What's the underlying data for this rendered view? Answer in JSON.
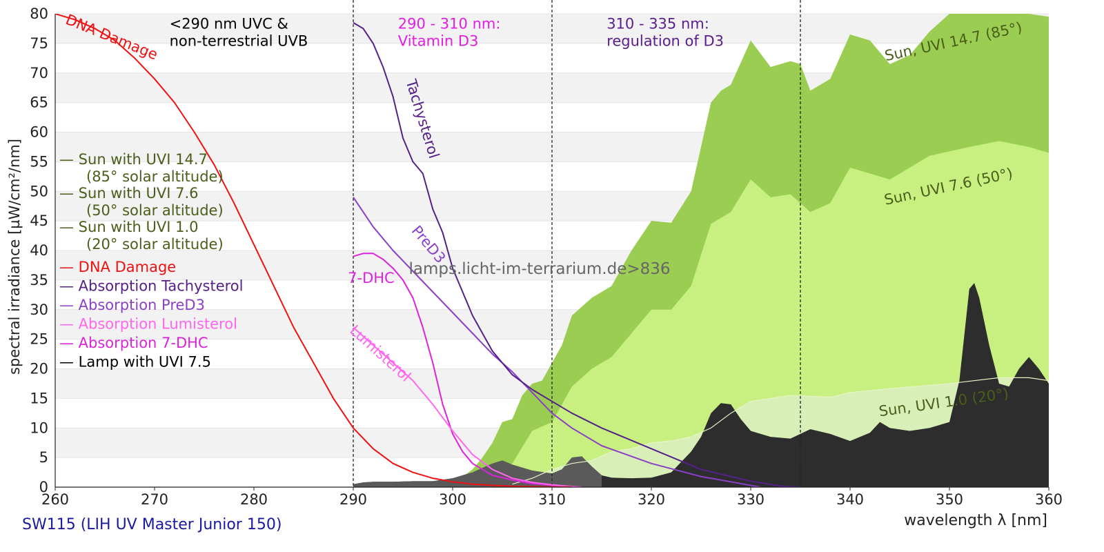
{
  "chart_data": {
    "type": "area",
    "title": "SW115 (LIH UV Master Junior 150)",
    "watermark": "lamps.licht-im-terrarium.de>836",
    "xlabel": "wavelength λ [nm]",
    "ylabel": "spectral irradiance [µW/cm²/nm]",
    "xlim": [
      260,
      360
    ],
    "ylim": [
      0,
      80
    ],
    "xticks": [
      260,
      270,
      280,
      290,
      300,
      310,
      320,
      330,
      340,
      350,
      360
    ],
    "yticks": [
      0,
      5,
      10,
      15,
      20,
      25,
      30,
      35,
      40,
      45,
      50,
      55,
      60,
      65,
      70,
      75,
      80
    ],
    "region_lines": [
      290,
      310,
      335
    ],
    "region_labels": [
      {
        "x": 271.5,
        "y": 77.5,
        "lines": [
          "<290 nm UVC &",
          "non-terrestrial UVB"
        ],
        "color": "#000000"
      },
      {
        "x": 294.5,
        "y": 77.5,
        "lines": [
          "290 - 310 nm:",
          "Vitamin D3"
        ],
        "color": "#e020e0"
      },
      {
        "x": 315.5,
        "y": 77.5,
        "lines": [
          "310 - 335 nm:",
          "regulation of D3"
        ],
        "color": "#5a1e8c"
      }
    ],
    "legend_position": "left",
    "legend": [
      {
        "label": "— Sun with UVI 14.7",
        "sub": "(85° solar altitude)",
        "color": "#4a5e1a"
      },
      {
        "label": "— Sun with UVI 7.6",
        "sub": "(50° solar altitude)",
        "color": "#4a5e1a"
      },
      {
        "label": "— Sun with UVI 1.0",
        "sub": "(20° solar altitude)",
        "color": "#4a5e1a"
      },
      {
        "label": "— DNA Damage",
        "color": "#ee1111"
      },
      {
        "label": "— Absorption Tachysterol",
        "color": "#55208a"
      },
      {
        "label": "— Absorption PreD3",
        "color": "#8a3fc8"
      },
      {
        "label": "— Absorption Lumisterol",
        "color": "#ff66ee"
      },
      {
        "label": "— Absorption 7-DHC",
        "color": "#dd22dd"
      },
      {
        "label": "— Lamp with UVI 7.5",
        "color": "#000000"
      }
    ],
    "series": [
      {
        "name": "Sun with UVI 14.7",
        "kind": "area",
        "color": "#9acd52",
        "x": [
          300,
          302,
          303,
          304,
          305,
          306,
          307,
          308,
          309,
          310,
          311,
          312,
          313,
          314,
          315,
          316,
          318,
          320,
          322,
          324,
          326,
          327,
          328,
          330,
          332,
          334,
          335,
          336,
          338,
          340,
          342,
          344,
          346,
          348,
          350,
          352,
          354,
          356,
          358,
          360
        ],
        "y": [
          0.5,
          3,
          5,
          7.5,
          11,
          11.5,
          15.5,
          17.5,
          18,
          21,
          24,
          29,
          30.5,
          32,
          33,
          34,
          40,
          45,
          44.7,
          50,
          65,
          67,
          68,
          75.5,
          71,
          72,
          71.5,
          67,
          69,
          76.5,
          75.5,
          71.5,
          73,
          77,
          80,
          81.5,
          83,
          81,
          80,
          79.5
        ]
      },
      {
        "name": "Sun with UVI 7.6",
        "kind": "area",
        "color": "#c8f080",
        "x": [
          302,
          304,
          306,
          308,
          310,
          311,
          312,
          314,
          316,
          318,
          320,
          322,
          324,
          326,
          328,
          330,
          332,
          334,
          336,
          338,
          340,
          344,
          348,
          352,
          355,
          358,
          360
        ],
        "y": [
          0.5,
          2.5,
          4,
          9.5,
          11,
          14,
          17,
          20,
          22,
          26,
          30,
          30,
          34,
          44.5,
          46.5,
          52,
          49,
          49.5,
          46.5,
          48,
          54,
          52,
          56,
          57.5,
          58.5,
          57.5,
          56.5
        ]
      },
      {
        "name": "Sun with UVI 1.0",
        "kind": "area",
        "color": "#d8f0b8",
        "x": [
          306,
          308,
          310,
          312,
          314,
          316,
          318,
          320,
          322,
          324,
          326,
          328,
          330,
          334,
          338,
          340,
          345,
          350,
          355,
          358,
          360
        ],
        "y": [
          0.5,
          1.5,
          3,
          4,
          4.5,
          6,
          6.5,
          7.5,
          7.8,
          8.5,
          10,
          12.5,
          14.5,
          15.5,
          15.2,
          16,
          16.8,
          17.5,
          18.5,
          18.5,
          18
        ]
      },
      {
        "name": "Lamp with UVI 7.5",
        "kind": "area",
        "color": "#2d2d2d",
        "shade_color": "#5a5a5a",
        "shade_x": [
          290,
          315
        ],
        "x": [
          290,
          291,
          292,
          294,
          296,
          298,
          300,
          302,
          304,
          305,
          306,
          308,
          310,
          311,
          312,
          313,
          314,
          315,
          316,
          318,
          320,
          322,
          324,
          325,
          326,
          327,
          328,
          329,
          330,
          332,
          334,
          336,
          338,
          340,
          342,
          343,
          344,
          346,
          348,
          350,
          351,
          352,
          352.5,
          353,
          354,
          355,
          356,
          357,
          358,
          359,
          360
        ],
        "y": [
          0.5,
          0.8,
          0.9,
          0.9,
          1.0,
          1.0,
          1.5,
          2.5,
          4,
          4.5,
          3.8,
          2.8,
          2.3,
          3,
          5,
          5.2,
          3.5,
          2,
          1.6,
          1.5,
          1.6,
          2.5,
          6,
          8.5,
          12.5,
          14.2,
          14,
          11.5,
          9.5,
          8.5,
          8.2,
          9.8,
          9,
          7.8,
          9.2,
          11,
          10,
          9.5,
          10,
          11,
          18,
          33.5,
          34.5,
          32,
          24,
          17.5,
          17,
          20,
          22,
          20,
          17.5
        ]
      },
      {
        "name": "Absorption 7-DHC",
        "kind": "line",
        "color": "#dd22dd",
        "x": [
          290,
          291,
          292,
          293,
          294,
          295,
          296,
          297,
          298,
          299,
          300,
          301,
          302,
          304,
          306,
          308,
          310,
          312,
          313
        ],
        "y": [
          39,
          39.5,
          39.5,
          38.5,
          37,
          35,
          32,
          27,
          21,
          14,
          9,
          6,
          4,
          2,
          1.2,
          0.6,
          0.3,
          0.1,
          0
        ]
      },
      {
        "name": "Absorption Lumisterol",
        "kind": "line",
        "color": "#ff66ee",
        "x": [
          290,
          292,
          294,
          296,
          298,
          300,
          302,
          304,
          306,
          308,
          310,
          312,
          313
        ],
        "y": [
          27,
          24,
          21,
          18,
          14,
          9.5,
          5.5,
          3,
          1.5,
          0.8,
          0.4,
          0.1,
          0
        ]
      },
      {
        "name": "Absorption PreD3",
        "kind": "line",
        "color": "#8a3fc8",
        "x": [
          290,
          292,
          294,
          296,
          298,
          300,
          302,
          304,
          306,
          308,
          310,
          312,
          315,
          320,
          325,
          330,
          331
        ],
        "y": [
          49,
          44,
          40,
          36.5,
          33,
          29.5,
          26,
          22.5,
          19.5,
          16,
          12.5,
          10,
          7,
          4,
          1.8,
          0.3,
          0
        ]
      },
      {
        "name": "Absorption Tachysterol",
        "kind": "line",
        "color": "#55208a",
        "x": [
          290,
          291,
          292,
          293,
          294,
          295,
          296,
          297,
          298,
          299,
          300,
          302,
          304,
          306,
          308,
          310,
          312,
          315,
          320,
          325,
          330,
          333,
          335
        ],
        "y": [
          78.5,
          77.5,
          75,
          71,
          66,
          59,
          55,
          53,
          47,
          43,
          37,
          29,
          23,
          19,
          16.5,
          14.5,
          12.5,
          10,
          6.5,
          3,
          1,
          0.2,
          0
        ]
      },
      {
        "name": "DNA Damage",
        "kind": "line",
        "color": "#ee1111",
        "x": [
          260,
          262,
          264,
          266,
          268,
          270,
          272,
          274,
          276,
          278,
          280,
          282,
          284,
          286,
          288,
          290,
          292,
          294,
          296,
          298,
          300,
          302,
          304,
          306,
          308,
          310,
          312
        ],
        "y": [
          80,
          79,
          77.5,
          75.5,
          72.5,
          69,
          65,
          60,
          54.5,
          48,
          41,
          34,
          27,
          21,
          15,
          10,
          6.5,
          4,
          2.5,
          1.5,
          0.9,
          0.5,
          0.3,
          0.15,
          0.08,
          0.04,
          0.02
        ]
      }
    ],
    "annotations": [
      {
        "text": "DNA Damage",
        "x": 265.5,
        "y": 75.3,
        "angle": 22,
        "color": "#ee1111"
      },
      {
        "text": "Tachysterol",
        "x": 296.5,
        "y": 62,
        "angle": 73,
        "color": "#55208a"
      },
      {
        "text": "PreD3",
        "x": 297.2,
        "y": 40.5,
        "angle": 50,
        "color": "#8a3fc8"
      },
      {
        "text": "7-DHC",
        "x": 291.8,
        "y": 34.5,
        "angle": 0,
        "color": "#dd22dd"
      },
      {
        "text": "Lumisterol",
        "x": 292.4,
        "y": 22,
        "angle": 42,
        "color": "#ff66ee"
      },
      {
        "text": "Sun, UVI 14.7 (85°)",
        "x": 350.5,
        "y": 74.5,
        "angle": -12,
        "color": "#4a5e1a"
      },
      {
        "text": "Sun, UVI 7.6 (50°)",
        "x": 350,
        "y": 50,
        "angle": -12,
        "color": "#4a5e1a"
      },
      {
        "text": "Sun, UVI 1.0 (20°)",
        "x": 349.5,
        "y": 13.5,
        "angle": -8,
        "color": "#4a5e1a"
      }
    ],
    "colors": {
      "band": "#f2f2f2",
      "grid": "#e4e4e4",
      "axis": "#222222",
      "tick_text": "#222222",
      "title": "#1a1aa0",
      "watermark": "#666666"
    }
  }
}
